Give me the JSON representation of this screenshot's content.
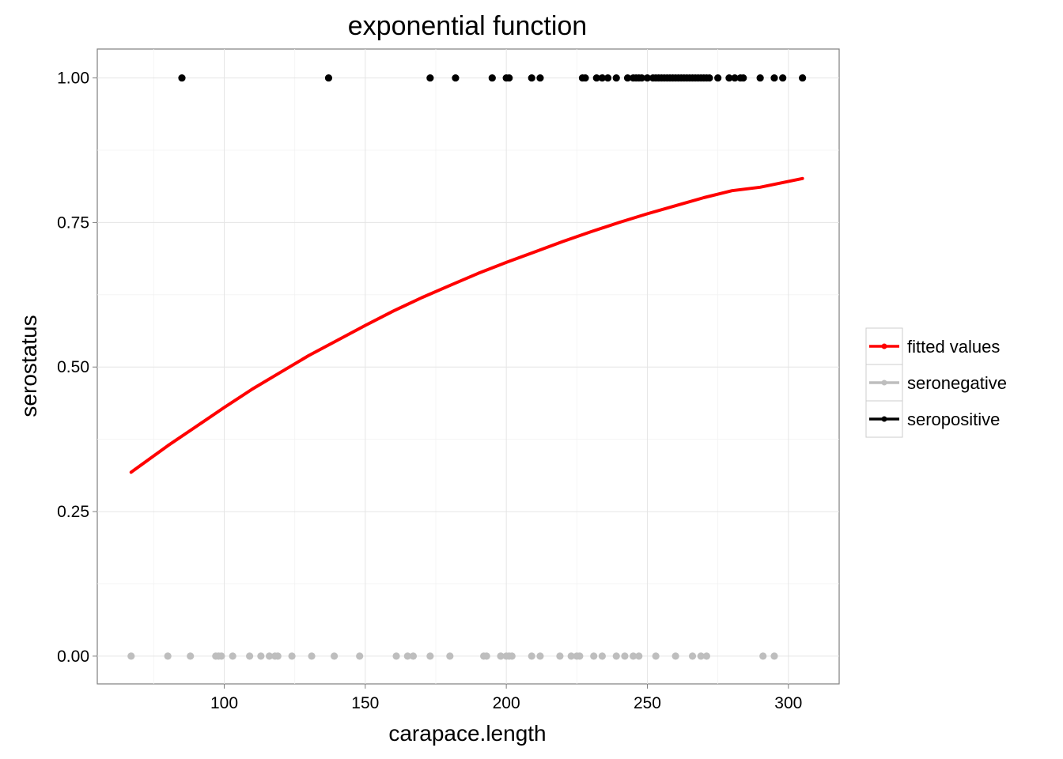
{
  "chart_data": {
    "type": "scatter",
    "title": "exponential function",
    "xlabel": "carapace.length",
    "ylabel": "serostatus",
    "xlim": [
      55,
      318
    ],
    "ylim": [
      -0.048,
      1.05
    ],
    "x_ticks": [
      100,
      150,
      200,
      250,
      300
    ],
    "x_tick_labels": [
      "100",
      "150",
      "200",
      "250",
      "300"
    ],
    "y_ticks": [
      0,
      0.25,
      0.5,
      0.75,
      1.0
    ],
    "y_tick_labels": [
      "0.00",
      "0.25",
      "0.50",
      "0.75",
      "1.00"
    ],
    "grid": true,
    "legend_position": "right",
    "legend": [
      {
        "label": "fitted values",
        "color": "#ff0000"
      },
      {
        "label": "seronegative",
        "color": "#bebebe"
      },
      {
        "label": "seropositive",
        "color": "#000000"
      }
    ],
    "series": [
      {
        "name": "seropositive",
        "kind": "points",
        "color": "#000000",
        "x": [
          85,
          137,
          173,
          182,
          195,
          200,
          201,
          209,
          212,
          227,
          228,
          232,
          234,
          236,
          239,
          243,
          245,
          246,
          247,
          248,
          250,
          252,
          253,
          254,
          255,
          256,
          257,
          258,
          259,
          260,
          261,
          262,
          263,
          264,
          265,
          266,
          267,
          268,
          269,
          270,
          271,
          272,
          275,
          279,
          281,
          283,
          284,
          290,
          295,
          298,
          305
        ],
        "y": [
          1,
          1,
          1,
          1,
          1,
          1,
          1,
          1,
          1,
          1,
          1,
          1,
          1,
          1,
          1,
          1,
          1,
          1,
          1,
          1,
          1,
          1,
          1,
          1,
          1,
          1,
          1,
          1,
          1,
          1,
          1,
          1,
          1,
          1,
          1,
          1,
          1,
          1,
          1,
          1,
          1,
          1,
          1,
          1,
          1,
          1,
          1,
          1,
          1,
          1,
          1
        ]
      },
      {
        "name": "seronegative",
        "kind": "points",
        "color": "#bebebe",
        "x": [
          67,
          80,
          88,
          97,
          98,
          99,
          103,
          109,
          113,
          116,
          118,
          119,
          124,
          131,
          139,
          148,
          161,
          165,
          167,
          173,
          180,
          192,
          193,
          198,
          200,
          201,
          202,
          209,
          212,
          219,
          223,
          225,
          226,
          231,
          234,
          239,
          242,
          245,
          247,
          253,
          260,
          266,
          269,
          271,
          291,
          295
        ],
        "y": [
          0,
          0,
          0,
          0,
          0,
          0,
          0,
          0,
          0,
          0,
          0,
          0,
          0,
          0,
          0,
          0,
          0,
          0,
          0,
          0,
          0,
          0,
          0,
          0,
          0,
          0,
          0,
          0,
          0,
          0,
          0,
          0,
          0,
          0,
          0,
          0,
          0,
          0,
          0,
          0,
          0,
          0,
          0,
          0,
          0,
          0
        ]
      },
      {
        "name": "fitted values",
        "kind": "line",
        "color": "#ff0000",
        "x": [
          67,
          80,
          90,
          100,
          110,
          120,
          130,
          140,
          150,
          160,
          170,
          180,
          190,
          200,
          210,
          220,
          230,
          240,
          250,
          260,
          270,
          280,
          290,
          305
        ],
        "y": [
          0.318,
          0.364,
          0.397,
          0.43,
          0.462,
          0.491,
          0.52,
          0.546,
          0.572,
          0.597,
          0.62,
          0.641,
          0.662,
          0.681,
          0.699,
          0.717,
          0.734,
          0.75,
          0.765,
          0.779,
          0.793,
          0.805,
          0.811,
          0.826
        ]
      }
    ]
  }
}
